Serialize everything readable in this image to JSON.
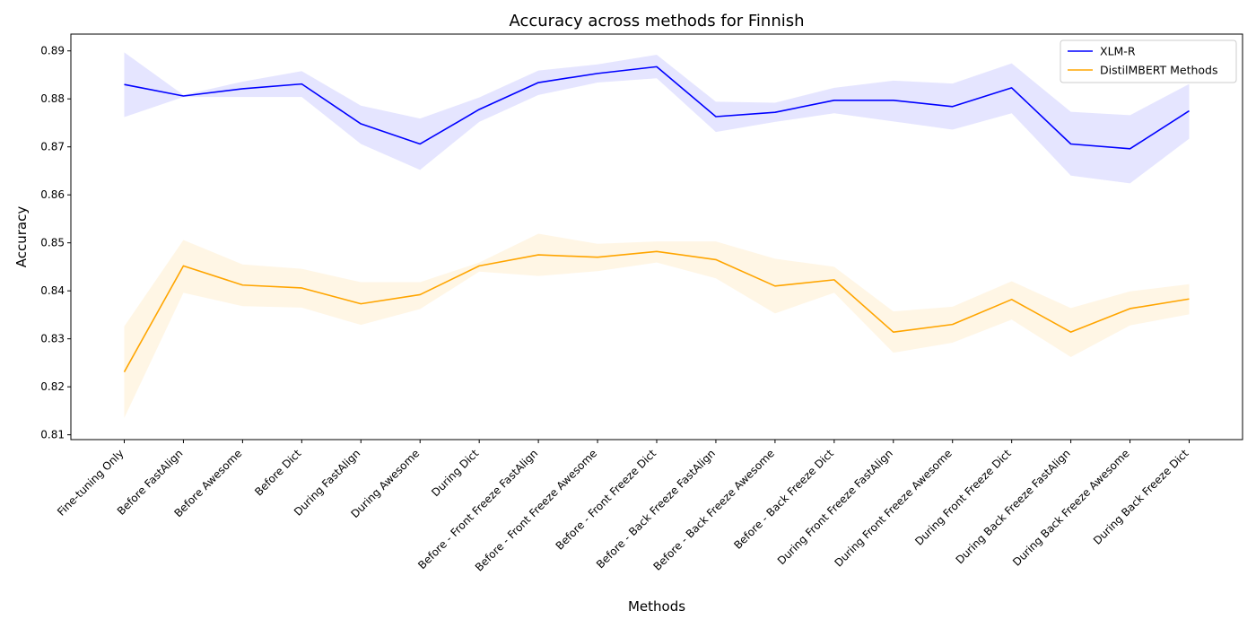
{
  "chart_data": {
    "type": "line",
    "title": "Accuracy across methods for Finnish",
    "xlabel": "Methods",
    "ylabel": "Accuracy",
    "ylim": [
      0.809,
      0.8935
    ],
    "yticks": [
      0.81,
      0.82,
      0.83,
      0.84,
      0.85,
      0.86,
      0.87,
      0.88,
      0.89
    ],
    "ytick_labels": [
      "0.81",
      "0.82",
      "0.83",
      "0.84",
      "0.85",
      "0.86",
      "0.87",
      "0.88",
      "0.89"
    ],
    "grid": false,
    "legend_position": "top-right",
    "categories": [
      "Fine-tuning Only",
      "Before FastAlign",
      "Before Awesome",
      "Before Dict",
      "During FastAlign",
      "During Awesome",
      "During Dict",
      "Before - Front Freeze FastAlign",
      "Before - Front Freeze Awesome",
      "Before - Front Freeze Dict",
      "Before - Back Freeze FastAlign",
      "Before - Back Freeze Awesome",
      "Before - Back Freeze Dict",
      "During Front Freeze FastAlign",
      "During Front Freeze Awesome",
      "During Front Freeze Dict",
      "During Back Freeze FastAlign",
      "During Back Freeze Awesome",
      "During Back Freeze Dict"
    ],
    "series": [
      {
        "name": "XLM-R",
        "color": "#0000ff",
        "band_color": "#0000ff",
        "values": [
          0.883,
          0.8806,
          0.8821,
          0.8831,
          0.8748,
          0.8706,
          0.8778,
          0.8834,
          0.8853,
          0.8867,
          0.8763,
          0.8772,
          0.8797,
          0.8797,
          0.8784,
          0.8823,
          0.8706,
          0.8696,
          0.8775
        ],
        "lower": [
          0.8762,
          0.8804,
          0.8804,
          0.8804,
          0.8706,
          0.8652,
          0.8752,
          0.8808,
          0.8834,
          0.8843,
          0.8731,
          0.8752,
          0.877,
          0.8753,
          0.8736,
          0.877,
          0.864,
          0.8624,
          0.8717
        ],
        "upper": [
          0.8897,
          0.8808,
          0.8836,
          0.8858,
          0.8786,
          0.8759,
          0.8803,
          0.8859,
          0.8872,
          0.8892,
          0.8794,
          0.8792,
          0.8823,
          0.8838,
          0.8832,
          0.8874,
          0.8773,
          0.8766,
          0.8831
        ]
      },
      {
        "name": "DistilMBERT Methods",
        "color": "#ffa500",
        "band_color": "#ffa500",
        "values": [
          0.8231,
          0.8452,
          0.8412,
          0.8406,
          0.8373,
          0.8392,
          0.8452,
          0.8475,
          0.847,
          0.8482,
          0.8465,
          0.841,
          0.8423,
          0.8314,
          0.833,
          0.8382,
          0.8314,
          0.8363,
          0.8383
        ],
        "lower": [
          0.8135,
          0.8396,
          0.8368,
          0.8365,
          0.8329,
          0.8362,
          0.844,
          0.8431,
          0.8441,
          0.8459,
          0.8426,
          0.8353,
          0.8396,
          0.8271,
          0.8292,
          0.834,
          0.8262,
          0.8328,
          0.8351
        ],
        "upper": [
          0.8326,
          0.8506,
          0.8455,
          0.8446,
          0.8418,
          0.8418,
          0.8459,
          0.8519,
          0.8498,
          0.8503,
          0.8503,
          0.8467,
          0.845,
          0.8357,
          0.8367,
          0.842,
          0.8364,
          0.8399,
          0.8414
        ]
      }
    ]
  }
}
